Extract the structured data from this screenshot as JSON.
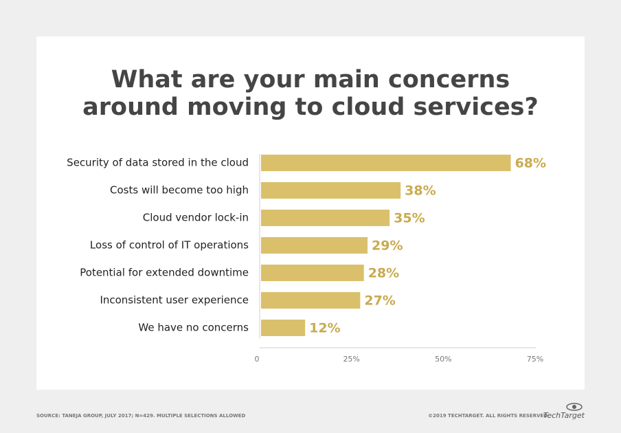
{
  "chart_data": {
    "type": "bar",
    "orientation": "horizontal",
    "title": [
      "What are your main concerns",
      "around moving to cloud services?"
    ],
    "categories": [
      "Security of data stored in the cloud",
      "Costs will become too high",
      "Cloud vendor lock-in",
      "Loss of control of IT operations",
      "Potential for extended downtime",
      "Inconsistent user experience",
      "We have no concerns"
    ],
    "values": [
      68,
      38,
      35,
      29,
      28,
      27,
      12
    ],
    "value_labels": [
      "68%",
      "38%",
      "35%",
      "29%",
      "28%",
      "27%",
      "12%"
    ],
    "color": "#dbc06b",
    "xlim": [
      0,
      75
    ],
    "xticks": [
      0,
      {
        "value": 25,
        "label": "25%"
      },
      {
        "value": 50,
        "label": "50%"
      },
      {
        "value": 75,
        "label": "75%"
      }
    ],
    "source": "SOURCE: TANEJA GROUP, JULY 2017; N=429. MULTIPLE SELECTIONS ALLOWED",
    "copyright": "©2019 TECHTARGET. ALL RIGHTS RESERVED",
    "brand": "TechTarget"
  }
}
